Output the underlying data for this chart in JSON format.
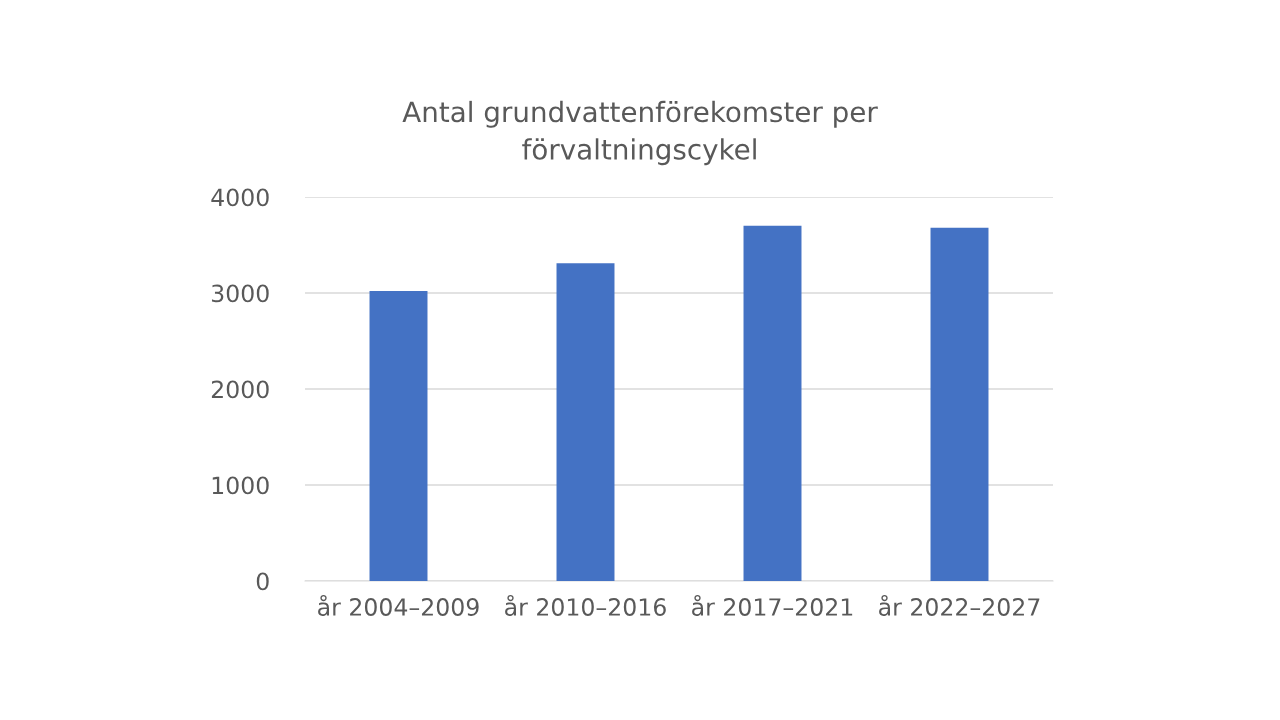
{
  "chart_data": {
    "type": "bar",
    "title": "Antal grundvattenförekomster per\nförvaltningscykel",
    "categories": [
      "år 2004–2009",
      "år 2010–2016",
      "år 2017–2021",
      "år 2022–2027"
    ],
    "values": [
      3020,
      3310,
      3700,
      3680
    ],
    "color": "#4472c4",
    "ylim": [
      0,
      4000
    ],
    "yticks": [
      0,
      1000,
      2000,
      3000,
      4000
    ],
    "grid": "y",
    "legend": false
  }
}
